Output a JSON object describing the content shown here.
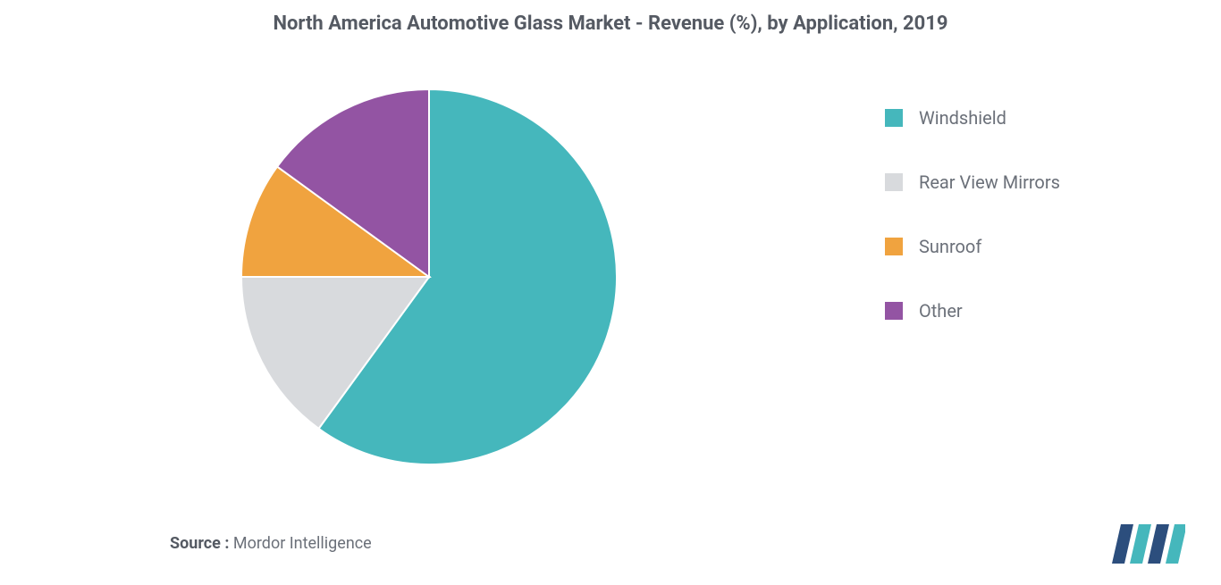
{
  "chart": {
    "type": "pie",
    "title": "North America Automotive Glass Market -  Revenue (%), by Application, 2019",
    "title_fontsize": 22,
    "title_color": "#555a63",
    "background_color": "#ffffff",
    "pie_radius": 210,
    "start_angle_deg": -90,
    "slice_border_color": "#ffffff",
    "slice_border_width": 2,
    "slices": [
      {
        "label": "Windshield",
        "value": 60,
        "color": "#45b7bc"
      },
      {
        "label": "Rear View Mirrors",
        "value": 15,
        "color": "#d8dadd"
      },
      {
        "label": "Sunroof",
        "value": 10,
        "color": "#f0a33f"
      },
      {
        "label": "Other",
        "value": 15,
        "color": "#9354a3"
      }
    ],
    "legend": {
      "position": "right",
      "fontsize": 20,
      "text_color": "#6b7079",
      "swatch_size": 20,
      "item_gap": 48
    }
  },
  "source": {
    "label": "Source :",
    "value": "Mordor Intelligence",
    "fontsize": 18,
    "label_color": "#555a63",
    "value_color": "#6b7079"
  },
  "logo": {
    "name": "mordor-intelligence-logo",
    "bar_colors": [
      "#2c4e7d",
      "#45b7bc",
      "#2c4e7d",
      "#45b7bc"
    ]
  }
}
